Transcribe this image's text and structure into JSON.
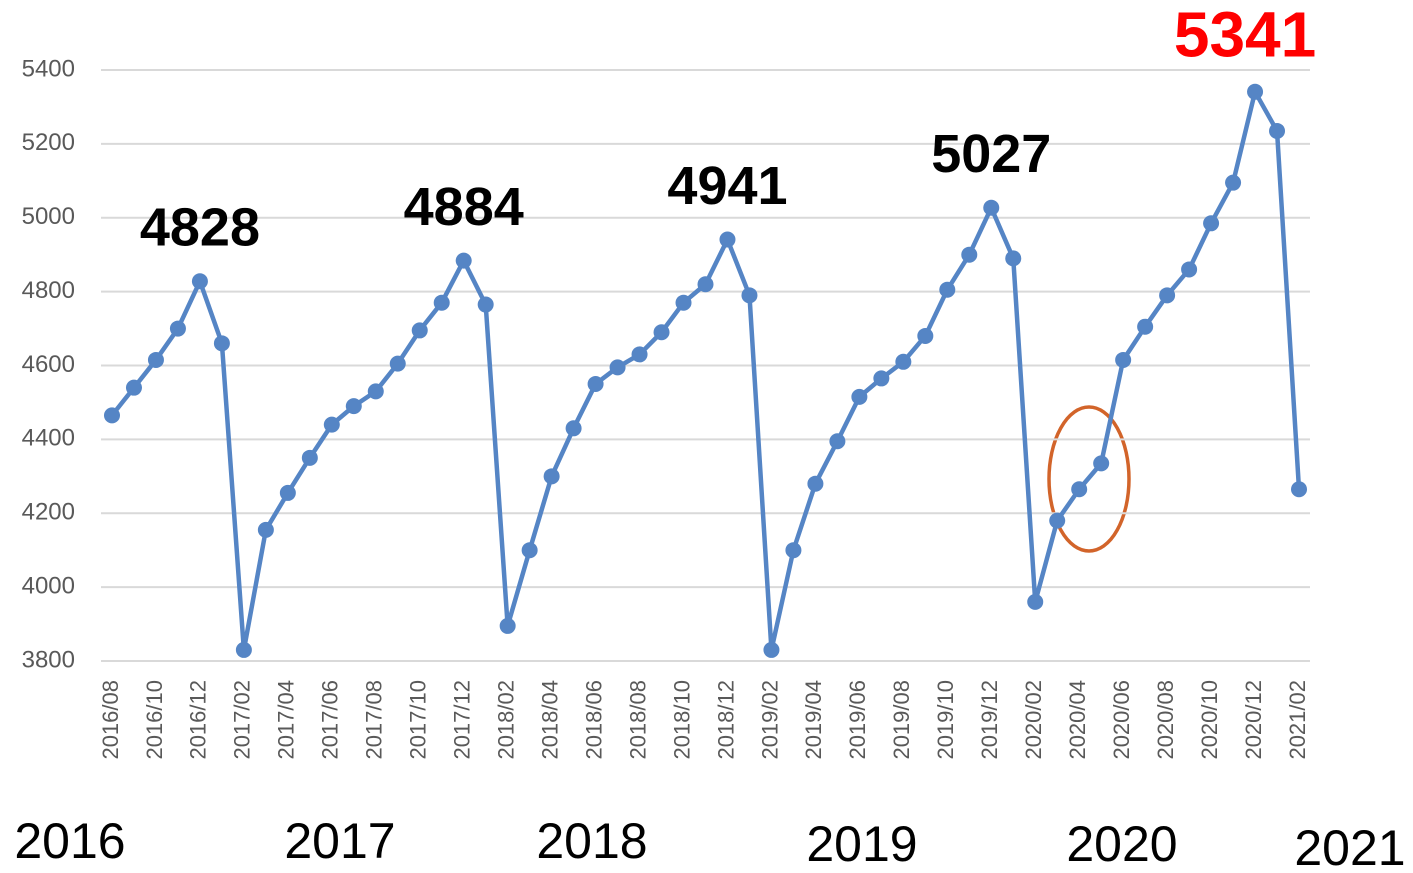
{
  "chart_data": {
    "type": "line",
    "categories": [
      "2016/08",
      null,
      "2016/10",
      null,
      "2016/12",
      null,
      "2017/02",
      null,
      "2017/04",
      null,
      "2017/06",
      null,
      "2017/08",
      null,
      "2017/10",
      null,
      "2017/12",
      null,
      "2018/02",
      null,
      "2018/04",
      null,
      "2018/06",
      null,
      "2018/08",
      null,
      "2018/10",
      null,
      "2018/12",
      null,
      "2019/02",
      null,
      "2019/04",
      null,
      "2019/06",
      null,
      "2019/08",
      null,
      "2019/10",
      null,
      "2019/12",
      null,
      "2020/02",
      null,
      "2020/04",
      null,
      "2020/06",
      null,
      "2020/08",
      null,
      "2020/10",
      null,
      "2020/12",
      null,
      "2021/02"
    ],
    "series": [
      {
        "color": "#5585c5",
        "values": [
          4465,
          4540,
          4615,
          4700,
          4828,
          4660,
          3830,
          4155,
          4255,
          4350,
          4440,
          4490,
          4530,
          4605,
          4695,
          4770,
          4884,
          4765,
          3895,
          4100,
          4300,
          4430,
          4550,
          4595,
          4630,
          4690,
          4770,
          4820,
          4941,
          4790,
          3830,
          4100,
          4280,
          4395,
          4515,
          4565,
          4610,
          4680,
          4805,
          4900,
          5027,
          4890,
          3960,
          4180,
          4265,
          4335,
          4615,
          4705,
          4790,
          4860,
          4985,
          5095,
          5341,
          5235,
          4265
        ]
      }
    ],
    "ylim": [
      3800,
      5400
    ],
    "yticks": [
      3800,
      4000,
      4200,
      4400,
      4600,
      4800,
      5000,
      5200,
      5400
    ],
    "grid": true,
    "label_color": "#000000",
    "highlight_color": "#ff0000",
    "year_labels": [
      "2016",
      "2017",
      "2018",
      "2019",
      "2020",
      "2021"
    ]
  }
}
